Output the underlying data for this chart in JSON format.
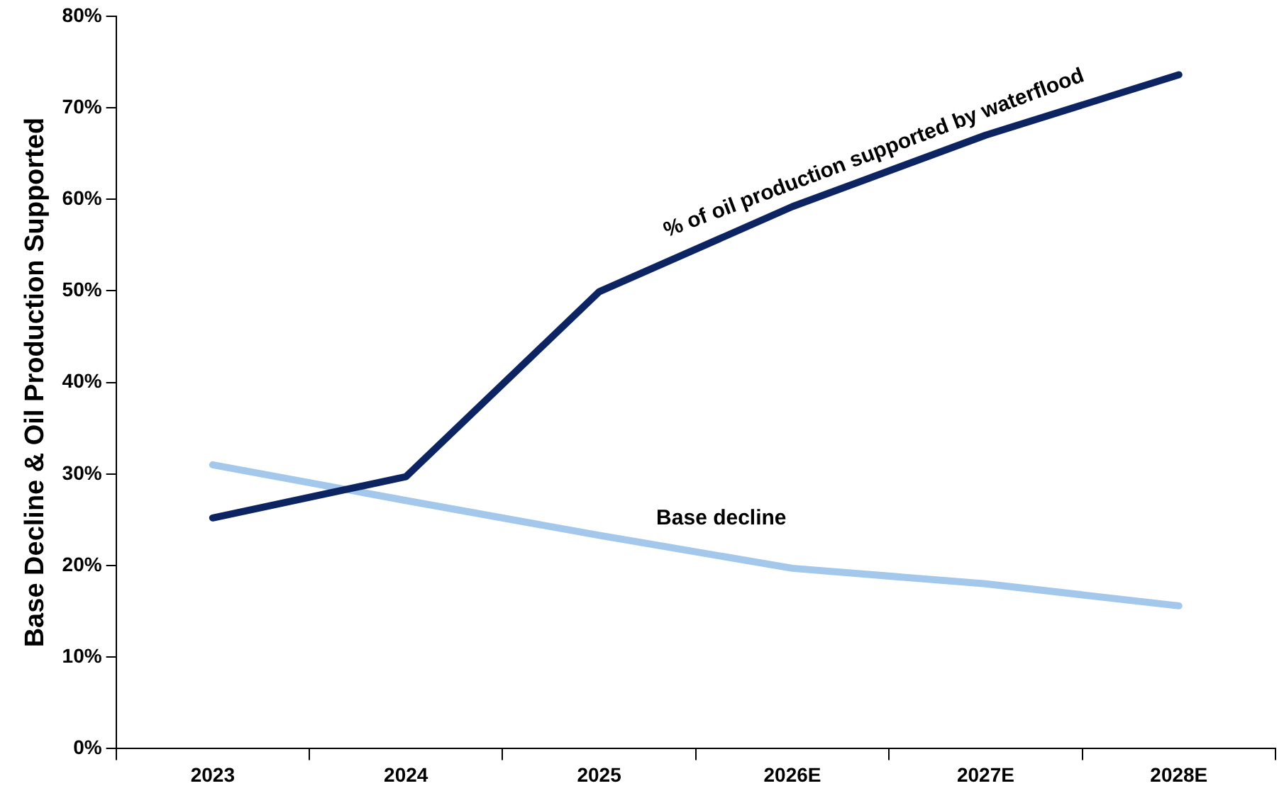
{
  "chart_data": {
    "type": "line",
    "ylabel": "Base Decline & Oil Production Supported",
    "categories": [
      "2023",
      "2024",
      "2025",
      "2026E",
      "2027E",
      "2028E"
    ],
    "series": [
      {
        "name": "% of oil production supported by waterflood",
        "color": "#0c2461",
        "values": [
          25.2,
          29.7,
          49.9,
          59.2,
          67.0,
          73.6
        ]
      },
      {
        "name": "Base decline",
        "color": "#a4c8ec",
        "values": [
          31.0,
          27.1,
          23.3,
          19.7,
          18.0,
          15.6
        ]
      }
    ],
    "ylim": [
      0,
      80
    ],
    "yticks": [
      {
        "value": 0,
        "label": "0%"
      },
      {
        "value": 10,
        "label": "10%"
      },
      {
        "value": 20,
        "label": "20%"
      },
      {
        "value": 30,
        "label": "30%"
      },
      {
        "value": 40,
        "label": "40%"
      },
      {
        "value": 50,
        "label": "50%"
      },
      {
        "value": 60,
        "label": "60%"
      },
      {
        "value": 70,
        "label": "70%"
      },
      {
        "value": 80,
        "label": "80%"
      }
    ],
    "grid": false,
    "legend": false,
    "marker": "none",
    "line_style": "solid"
  }
}
